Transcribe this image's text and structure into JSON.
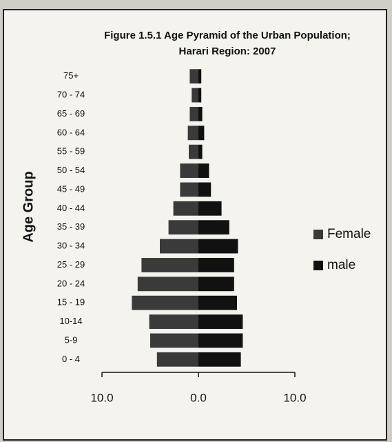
{
  "chart_data": {
    "type": "pyramid",
    "title": "Figure 1.5.1 Age Pyramid of the Urban Population;",
    "subtitle": "Harari Region: 2007",
    "y_label": "Age Group",
    "categories": [
      "0 - 4",
      "5-9",
      "10-14",
      "15 - 19",
      "20 - 24",
      "25 - 29",
      "30 - 34",
      "35 - 39",
      "40 - 44",
      "45 - 49",
      "50 - 54",
      "55 - 59",
      "60 - 64",
      "65 - 69",
      "70 - 74",
      "75+"
    ],
    "series": [
      {
        "name": "Female",
        "color": "#3a3a3a",
        "values": [
          -4.3,
          -5.0,
          -5.1,
          -6.9,
          -6.3,
          -5.9,
          -4.0,
          -3.1,
          -2.6,
          -1.9,
          -1.9,
          -1.0,
          -1.1,
          -0.9,
          -0.7,
          -0.9
        ]
      },
      {
        "name": "male",
        "color": "#111111",
        "values": [
          4.4,
          4.6,
          4.6,
          4.0,
          3.7,
          3.7,
          4.1,
          3.2,
          2.4,
          1.3,
          1.1,
          0.4,
          0.6,
          0.4,
          0.3,
          0.3
        ]
      }
    ],
    "xlim": [
      -10,
      10
    ],
    "xticks": [
      {
        "value": -10,
        "label": "10.0"
      },
      {
        "value": 0,
        "label": "0.0"
      },
      {
        "value": 10,
        "label": "10.0"
      }
    ],
    "legend": "right"
  }
}
